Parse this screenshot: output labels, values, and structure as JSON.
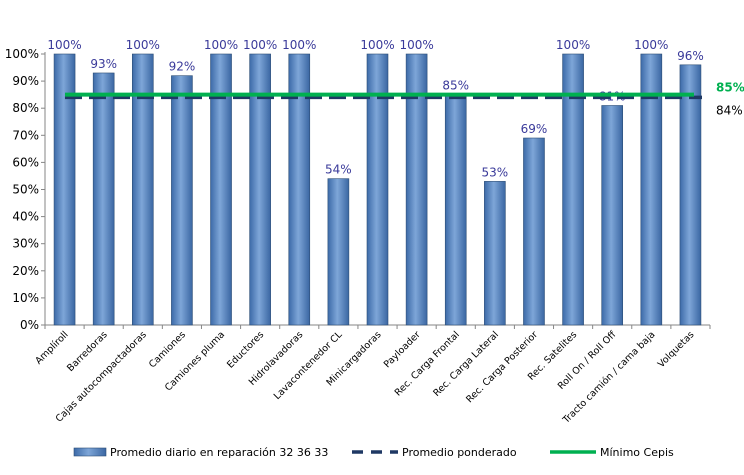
{
  "chart_data": {
    "type": "bar",
    "categories": [
      "Amplíroll",
      "Barredoras",
      "Cajas autocompactadoras",
      "Camiones",
      "Camiones pluma",
      "Eductores",
      "Hidrolavadoras",
      "Lavacontenedor CL",
      "Minicargadoras",
      "Payloader",
      "Rec. Carga Frontal",
      "Rec. Carga Lateral",
      "Rec. Carga Posterior",
      "Rec. Satelites",
      "Roll On / Roll Off",
      "Tracto camión / cama baja",
      "Volquetas"
    ],
    "series": [
      {
        "name": "Promedio diario en reparación 32   36 33",
        "type": "bar",
        "values": [
          100,
          93,
          100,
          92,
          100,
          100,
          100,
          54,
          100,
          100,
          85,
          53,
          69,
          100,
          81,
          100,
          96
        ]
      },
      {
        "name": "Promedio ponderado",
        "type": "line",
        "value": 84
      },
      {
        "name": "Mínimo Cepis",
        "type": "line",
        "value": 85
      }
    ],
    "data_labels": [
      "100%",
      "93%",
      "100%",
      "92%",
      "100%",
      "100%",
      "100%",
      "54%",
      "100%",
      "100%",
      "85%",
      "53%",
      "69%",
      "100%",
      "81%",
      "100%",
      "96%"
    ],
    "ref_labels": {
      "minimo": "85%",
      "ponderado": "84%"
    },
    "yticks": [
      "0%",
      "10%",
      "20%",
      "30%",
      "40%",
      "50%",
      "60%",
      "70%",
      "80%",
      "90%",
      "100%"
    ],
    "ylim": [
      0,
      100
    ],
    "legend_position": "bottom",
    "grid": false,
    "colors": {
      "bar": "#4f81bd",
      "bar_dark": "#2c4d75",
      "ponderado": "#1f3864",
      "minimo": "#00b050"
    }
  }
}
